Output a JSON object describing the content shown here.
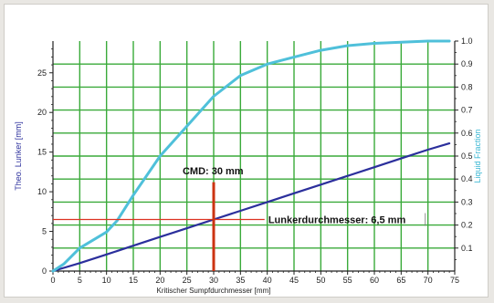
{
  "chart_data": {
    "type": "line",
    "xlabel": "Kritischer Sumpfdurchmesser [mm]",
    "ylabel": "Theo. Lunker [mm]",
    "y2label": "Liquid Fraction",
    "xlim": [
      0,
      75
    ],
    "ylim": [
      0,
      29
    ],
    "y2lim": [
      0,
      1.0
    ],
    "grid": true,
    "xticks": [
      "0",
      "5",
      "10",
      "15",
      "20",
      "25",
      "30",
      "35",
      "40",
      "45",
      "50",
      "55",
      "60",
      "65",
      "70",
      "75"
    ],
    "yticks": [
      "0",
      "5",
      "10",
      "15",
      "20",
      "25"
    ],
    "y2ticks": [
      "0.1",
      "0.2",
      "0.3",
      "0.4",
      "0.5",
      "0.6",
      "0.7",
      "0.8",
      "0.9",
      "1.0"
    ],
    "series": [
      {
        "axis": "left",
        "color": "#2b2f9c",
        "x": [
          0,
          5,
          10,
          15,
          20,
          25,
          30,
          35,
          40,
          45,
          50,
          55,
          60,
          65,
          70,
          74
        ],
        "y": [
          0,
          1.0,
          2.1,
          3.2,
          4.3,
          5.4,
          6.5,
          7.6,
          8.7,
          9.8,
          10.9,
          12.0,
          13.1,
          14.2,
          15.3,
          16.1
        ]
      },
      {
        "axis": "right",
        "color": "#4fc0da",
        "x": [
          0,
          2,
          5,
          10,
          12,
          15,
          20,
          25,
          30,
          35,
          40,
          45,
          50,
          55,
          60,
          65,
          70,
          74
        ],
        "y": [
          0.0,
          0.03,
          0.1,
          0.17,
          0.22,
          0.33,
          0.5,
          0.63,
          0.76,
          0.85,
          0.9,
          0.93,
          0.96,
          0.98,
          0.99,
          0.995,
          1.0,
          1.0
        ]
      }
    ],
    "annotations": [
      {
        "text": "CMD: 30 mm",
        "x": 30,
        "color": "#cc3311"
      },
      {
        "text": "Lunkerdurchmesser: 6,5 mm",
        "y": 6.5,
        "color": "#dd3322"
      }
    ]
  }
}
